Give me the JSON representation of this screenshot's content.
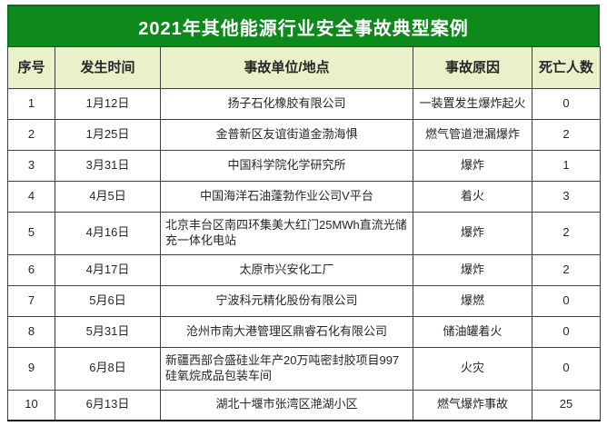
{
  "title": "2021年其他能源行业安全事故典型案例",
  "colors": {
    "banner_bg": "#0e8a1c",
    "banner_border": "#0a7317",
    "header_bg": "#e9f0ca",
    "border": "#404040",
    "text": "#262626",
    "banner_text": "#ffffff"
  },
  "chart_data": {
    "type": "table",
    "title": "2021年其他能源行业安全事故典型案例",
    "headers": [
      "序号",
      "发生时间",
      "事故单位/地点",
      "事故原因",
      "死亡人数"
    ],
    "rows": [
      {
        "index": "1",
        "date": "1月12日",
        "unit": "扬子石化橡胶有限公司",
        "cause": "一装置发生爆炸起火",
        "deaths": "0"
      },
      {
        "index": "2",
        "date": "1月25日",
        "unit": "金普新区友谊街道金渤海惧",
        "cause": "燃气管道泄漏爆炸",
        "deaths": "2"
      },
      {
        "index": "3",
        "date": "3月31日",
        "unit": "中国科学院化学研究所",
        "cause": "爆炸",
        "deaths": "1"
      },
      {
        "index": "4",
        "date": "4月5日",
        "unit": "中国海洋石油蓬勃作业公司V平台",
        "cause": "着火",
        "deaths": "3"
      },
      {
        "index": "5",
        "date": "4月16日",
        "unit": "北京丰台区南四环集美大红门25MWh直流光储充一体化电站",
        "cause": "爆炸",
        "deaths": "2"
      },
      {
        "index": "6",
        "date": "4月17日",
        "unit": "太原市兴安化工厂",
        "cause": "爆炸",
        "deaths": "2"
      },
      {
        "index": "7",
        "date": "5月6日",
        "unit": "宁波科元精化股份有限公司",
        "cause": "爆燃",
        "deaths": "0"
      },
      {
        "index": "8",
        "date": "5月31日",
        "unit": "沧州市南大港管理区鼎睿石化有限公司",
        "cause": "储油罐着火",
        "deaths": "0"
      },
      {
        "index": "9",
        "date": "6月8日",
        "unit": "新疆西部合盛硅业年产20万吨密封胶项目997硅氧烷成品包装车间",
        "cause": "火灾",
        "deaths": "0"
      },
      {
        "index": "10",
        "date": "6月13日",
        "unit": "湖北十堰市张湾区滟湖小区",
        "cause": "燃气爆炸事故",
        "deaths": "25"
      }
    ]
  }
}
